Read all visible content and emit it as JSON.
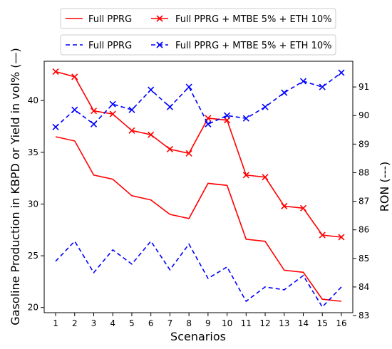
{
  "chart_data": {
    "type": "line",
    "title": "",
    "xlabel": "Scenarios",
    "ylabel_left": "Gasoline Production in KBPD or Yield in vol% (—)",
    "ylabel_right": "RON (---)",
    "x": [
      1,
      2,
      3,
      4,
      5,
      6,
      7,
      8,
      9,
      10,
      11,
      12,
      13,
      14,
      15,
      16
    ],
    "x_tick_labels": [
      "1",
      "2",
      "3",
      "4",
      "5",
      "6",
      "7",
      "8",
      "9",
      "10",
      "11",
      "12",
      "13",
      "14",
      "15",
      "16"
    ],
    "xlim": [
      0.4,
      16.6
    ],
    "ylim_left": [
      19.5,
      43.8
    ],
    "ylim_right": [
      83.1,
      91.9
    ],
    "left_ticks": [
      "20",
      "25",
      "30",
      "35",
      "40"
    ],
    "right_ticks": [
      "83",
      "84",
      "85",
      "86",
      "87",
      "88",
      "89",
      "90",
      "91"
    ],
    "grid": false,
    "legend_placement": "top (two separate boxes above plot)",
    "colors": {
      "red": "#ff0000",
      "blue": "#0000ff"
    },
    "series": [
      {
        "name": "Full PPRG",
        "axis": "left",
        "color": "red",
        "linestyle": "solid",
        "marker": "none",
        "values": [
          36.5,
          36.1,
          32.8,
          32.4,
          30.8,
          30.4,
          29.0,
          28.6,
          32.0,
          31.8,
          26.6,
          26.4,
          23.6,
          23.4,
          20.8,
          20.6
        ]
      },
      {
        "name": "Full PPRG + MTBE 5% + ETH 10%",
        "axis": "left",
        "color": "red",
        "linestyle": "solid",
        "marker": "x",
        "values": [
          42.8,
          42.3,
          39.0,
          38.7,
          37.1,
          36.7,
          35.3,
          34.9,
          38.3,
          38.1,
          32.8,
          32.6,
          29.8,
          29.6,
          27.0,
          26.8
        ]
      },
      {
        "name": "Full PPRG",
        "axis": "right",
        "color": "blue",
        "linestyle": "dashed",
        "marker": "none",
        "values": [
          84.9,
          85.6,
          84.5,
          85.3,
          84.8,
          85.6,
          84.6,
          85.5,
          84.3,
          84.7,
          83.5,
          84.0,
          83.9,
          84.4,
          83.3,
          84.0
        ]
      },
      {
        "name": "Full PPRG + MTBE 5% + ETH 10%",
        "axis": "right",
        "color": "blue",
        "linestyle": "dashed",
        "marker": "x",
        "values": [
          89.6,
          90.2,
          89.7,
          90.4,
          90.2,
          90.9,
          90.3,
          91.0,
          89.7,
          90.0,
          89.9,
          90.3,
          90.8,
          91.2,
          91.0,
          91.5
        ]
      }
    ]
  },
  "legends": [
    {
      "items": [
        {
          "label": "Full PPRG"
        },
        {
          "label": "Full PPRG + MTBE 5% + ETH 10%"
        }
      ]
    },
    {
      "items": [
        {
          "label": "Full PPRG"
        },
        {
          "label": "Full PPRG + MTBE 5% + ETH 10%"
        }
      ]
    }
  ]
}
